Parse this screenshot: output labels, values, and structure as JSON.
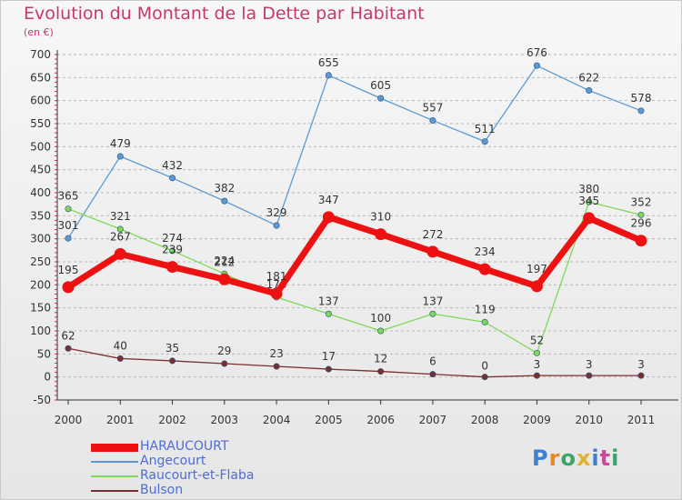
{
  "title": "Evolution du Montant de la Dette par Habitant",
  "unit_label": "(en €)",
  "chart_data": {
    "type": "line",
    "title": "Evolution du Montant de la Dette par Habitant",
    "subtitle": "(en €)",
    "xlabel": "",
    "ylabel": "",
    "x": [
      "2000",
      "2001",
      "2002",
      "2003",
      "2004",
      "2005",
      "2006",
      "2007",
      "2008",
      "2009",
      "2010",
      "2011"
    ],
    "ylim": [
      -50,
      700
    ],
    "yticks": [
      -50,
      0,
      50,
      100,
      150,
      200,
      250,
      300,
      350,
      400,
      450,
      500,
      550,
      600,
      650,
      700
    ],
    "ytick_labels": [
      "-50",
      "0",
      "50",
      "100",
      "150",
      "200",
      "250",
      "300",
      "350",
      "400",
      "450",
      "500",
      "550",
      "600",
      "650",
      "700"
    ],
    "grid": "horizontal dashed",
    "legend_position": "bottom-left",
    "series": [
      {
        "name": "Angecourt",
        "color": "#5b9bd5",
        "values": [
          301,
          479,
          432,
          382,
          329,
          655,
          605,
          557,
          511,
          676,
          622,
          578
        ]
      },
      {
        "name": "Raucourt-et-Flaba",
        "color": "#7ed957",
        "values": [
          365,
          321,
          274,
          224,
          173,
          137,
          100,
          137,
          119,
          52,
          380,
          352
        ]
      },
      {
        "name": "Bulson",
        "color": "#7a2f2f",
        "values": [
          62,
          40,
          35,
          29,
          23,
          17,
          12,
          6,
          0,
          3,
          3,
          3
        ]
      },
      {
        "name": "HARAUCOURT",
        "color": "#ee1111",
        "values": [
          195,
          267,
          239,
          212,
          181,
          347,
          310,
          272,
          234,
          197,
          345,
          296
        ]
      }
    ]
  },
  "legend": [
    {
      "label": "HARAUCOURT",
      "color": "#ee1111"
    },
    {
      "label": "Angecourt",
      "color": "#5b9bd5"
    },
    {
      "label": "Raucourt-et-Flaba",
      "color": "#7ed957"
    },
    {
      "label": "Bulson",
      "color": "#7a2f2f"
    }
  ],
  "logo": {
    "letters": [
      "P",
      "r",
      "o",
      "x",
      "i",
      "t",
      "i"
    ],
    "colors": [
      "#3f7fd0",
      "#e6892a",
      "#3aa56a",
      "#e0b42a",
      "#3f7fd0",
      "#c84a9a",
      "#3aa56a"
    ]
  }
}
